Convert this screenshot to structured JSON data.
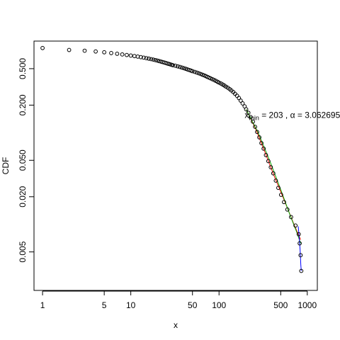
{
  "chart_data": {
    "type": "scatter",
    "xlabel": "x",
    "ylabel": "CDF",
    "x_scale": "log",
    "y_scale": "log",
    "xlim": [
      0.8,
      1300
    ],
    "ylim": [
      0.0019,
      1.0
    ],
    "x_ticks": [
      1,
      5,
      10,
      50,
      100,
      500,
      1000
    ],
    "x_tick_labels": [
      "1",
      "5",
      "10",
      "50",
      "100",
      "500",
      "1000"
    ],
    "y_ticks": [
      0.005,
      0.02,
      0.05,
      0.2,
      0.5
    ],
    "y_tick_labels": [
      "0.005",
      "0.020",
      "0.050",
      "0.200",
      "0.500"
    ],
    "annotation": {
      "parts": [
        "x",
        "min",
        " = 203 ,  α = 3.062695"
      ],
      "x": 195,
      "y": 0.145
    },
    "points": [
      [
        1,
        0.84
      ],
      [
        2,
        0.8
      ],
      [
        3,
        0.785
      ],
      [
        4,
        0.77
      ],
      [
        5,
        0.755
      ],
      [
        6,
        0.74
      ],
      [
        7,
        0.727
      ],
      [
        8,
        0.715
      ],
      [
        9,
        0.705
      ],
      [
        10,
        0.695
      ],
      [
        11,
        0.686
      ],
      [
        12,
        0.677
      ],
      [
        13,
        0.668
      ],
      [
        14,
        0.66
      ],
      [
        15,
        0.651
      ],
      [
        16,
        0.643
      ],
      [
        17,
        0.635
      ],
      [
        18,
        0.628
      ],
      [
        19,
        0.62
      ],
      [
        20,
        0.612
      ],
      [
        21,
        0.604
      ],
      [
        22,
        0.597
      ],
      [
        23,
        0.59
      ],
      [
        24,
        0.583
      ],
      [
        25,
        0.576
      ],
      [
        26,
        0.569
      ],
      [
        27,
        0.563
      ],
      [
        28,
        0.557
      ],
      [
        29,
        0.551
      ],
      [
        30,
        0.545
      ],
      [
        32,
        0.538
      ],
      [
        34,
        0.53
      ],
      [
        36,
        0.522
      ],
      [
        38,
        0.514
      ],
      [
        40,
        0.506
      ],
      [
        42,
        0.498
      ],
      [
        44,
        0.49
      ],
      [
        46,
        0.483
      ],
      [
        48,
        0.476
      ],
      [
        50,
        0.469
      ],
      [
        53,
        0.461
      ],
      [
        56,
        0.453
      ],
      [
        59,
        0.445
      ],
      [
        62,
        0.437
      ],
      [
        65,
        0.429
      ],
      [
        68,
        0.422
      ],
      [
        71,
        0.414
      ],
      [
        74,
        0.406
      ],
      [
        77,
        0.399
      ],
      [
        80,
        0.392
      ],
      [
        84,
        0.384
      ],
      [
        88,
        0.376
      ],
      [
        92,
        0.368
      ],
      [
        96,
        0.36
      ],
      [
        100,
        0.352
      ],
      [
        105,
        0.344
      ],
      [
        110,
        0.336
      ],
      [
        115,
        0.327
      ],
      [
        120,
        0.318
      ],
      [
        126,
        0.309
      ],
      [
        132,
        0.299
      ],
      [
        138,
        0.289
      ],
      [
        145,
        0.278
      ],
      [
        152,
        0.266
      ],
      [
        160,
        0.253
      ],
      [
        168,
        0.239
      ],
      [
        176,
        0.224
      ],
      [
        185,
        0.209
      ],
      [
        195,
        0.194
      ],
      [
        203,
        0.18
      ],
      [
        215,
        0.165
      ],
      [
        228,
        0.148
      ],
      [
        242,
        0.132
      ],
      [
        256,
        0.116
      ],
      [
        270,
        0.102
      ],
      [
        286,
        0.089
      ],
      [
        302,
        0.077
      ],
      [
        320,
        0.067
      ],
      [
        340,
        0.057
      ],
      [
        362,
        0.049
      ],
      [
        386,
        0.042
      ],
      [
        412,
        0.036
      ],
      [
        440,
        0.03
      ],
      [
        470,
        0.025
      ],
      [
        505,
        0.021
      ],
      [
        545,
        0.0175
      ],
      [
        595,
        0.0145
      ],
      [
        655,
        0.012
      ],
      [
        735,
        0.0097
      ],
      [
        800,
        0.0078
      ],
      [
        820,
        0.0062
      ],
      [
        840,
        0.0046
      ],
      [
        855,
        0.0031
      ]
    ],
    "fit_lines": [
      {
        "color": "#ff0000",
        "points": [
          [
            203,
            0.18
          ],
          [
            260,
            0.11
          ],
          [
            330,
            0.062
          ],
          [
            420,
            0.034
          ],
          [
            540,
            0.019
          ],
          [
            700,
            0.0102
          ],
          [
            840,
            0.0068
          ]
        ]
      },
      {
        "color": "#00aa00",
        "points": [
          [
            203,
            0.18
          ],
          [
            280,
            0.098
          ],
          [
            380,
            0.048
          ],
          [
            500,
            0.024
          ],
          [
            640,
            0.0125
          ],
          [
            760,
            0.0082
          ],
          [
            840,
            0.0062
          ]
        ]
      },
      {
        "color": "#0000ff",
        "points": [
          [
            790,
            0.0095
          ],
          [
            810,
            0.0072
          ],
          [
            830,
            0.0052
          ],
          [
            845,
            0.0036
          ],
          [
            855,
            0.0031
          ]
        ]
      }
    ]
  }
}
